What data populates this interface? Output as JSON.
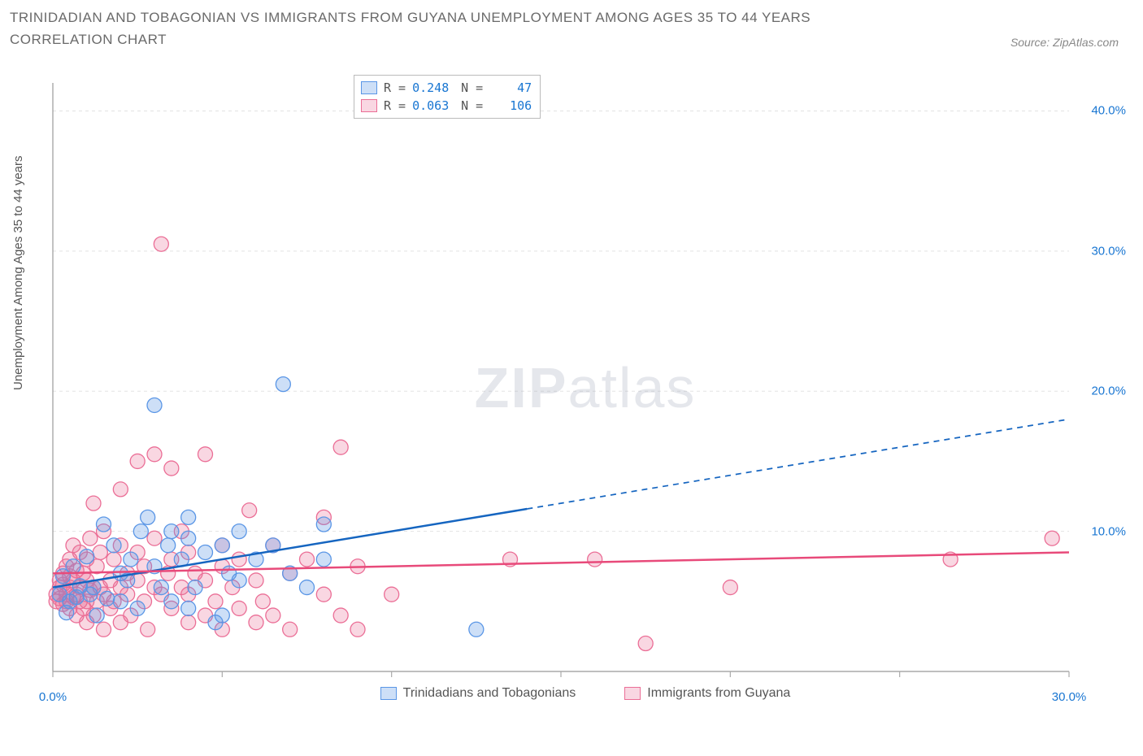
{
  "title": "TRINIDADIAN AND TOBAGONIAN VS IMMIGRANTS FROM GUYANA UNEMPLOYMENT AMONG AGES 35 TO 44 YEARS CORRELATION CHART",
  "source": "Source: ZipAtlas.com",
  "ylabel": "Unemployment Among Ages 35 to 44 years",
  "watermark_a": "ZIP",
  "watermark_b": "atlas",
  "chart": {
    "type": "scatter",
    "xlim": [
      0,
      30
    ],
    "ylim": [
      0,
      42
    ],
    "xticks": [
      0,
      5,
      10,
      15,
      20,
      25,
      30
    ],
    "xticklabels": [
      "0.0%",
      "",
      "",
      "",
      "",
      "",
      "30.0%"
    ],
    "yticks": [
      10,
      20,
      30,
      40
    ],
    "yticklabels": [
      "10.0%",
      "20.0%",
      "30.0%",
      "40.0%"
    ],
    "grid_color": "#e3e3e3",
    "axis_color": "#999999",
    "tick_color": "#aaaaaa",
    "background": "#ffffff",
    "marker_radius": 9,
    "marker_stroke_width": 1.3,
    "line_width": 2.5,
    "series": [
      {
        "name": "Trinidadians and Tobagonians",
        "color_fill": "rgba(90,150,230,0.30)",
        "color_stroke": "#5a96e6",
        "line_color": "#1565c0",
        "R": "0.248",
        "N": "47",
        "trend": {
          "x1": 0,
          "y1": 6.0,
          "x2": 30,
          "y2": 18.0,
          "solid_until_x": 14
        },
        "points": [
          [
            0.2,
            5.5
          ],
          [
            0.3,
            6.8
          ],
          [
            0.4,
            4.2
          ],
          [
            0.5,
            5.0
          ],
          [
            0.6,
            7.5
          ],
          [
            0.7,
            5.3
          ],
          [
            0.8,
            6.1
          ],
          [
            1.0,
            8.2
          ],
          [
            1.1,
            5.5
          ],
          [
            1.2,
            6.0
          ],
          [
            1.3,
            4.0
          ],
          [
            1.5,
            10.5
          ],
          [
            1.6,
            5.2
          ],
          [
            1.8,
            9.0
          ],
          [
            2.0,
            5.0
          ],
          [
            2.0,
            7.0
          ],
          [
            2.2,
            6.5
          ],
          [
            2.3,
            8.0
          ],
          [
            2.5,
            4.5
          ],
          [
            2.6,
            10.0
          ],
          [
            2.8,
            11.0
          ],
          [
            3.0,
            7.5
          ],
          [
            3.0,
            19.0
          ],
          [
            3.2,
            6.0
          ],
          [
            3.4,
            9.0
          ],
          [
            3.5,
            5.0
          ],
          [
            3.5,
            10.0
          ],
          [
            3.8,
            8.0
          ],
          [
            4.0,
            4.5
          ],
          [
            4.0,
            9.5
          ],
          [
            4.0,
            11.0
          ],
          [
            4.2,
            6.0
          ],
          [
            4.5,
            8.5
          ],
          [
            4.8,
            3.5
          ],
          [
            5.0,
            4.0
          ],
          [
            5.0,
            9.0
          ],
          [
            5.2,
            7.0
          ],
          [
            5.5,
            6.5
          ],
          [
            5.5,
            10.0
          ],
          [
            6.0,
            8.0
          ],
          [
            6.5,
            9.0
          ],
          [
            6.8,
            20.5
          ],
          [
            7.0,
            7.0
          ],
          [
            7.5,
            6.0
          ],
          [
            8.0,
            10.5
          ],
          [
            8.0,
            8.0
          ],
          [
            12.5,
            3.0
          ]
        ]
      },
      {
        "name": "Immigrants from Guyana",
        "color_fill": "rgba(235,110,150,0.28)",
        "color_stroke": "#eb6e96",
        "line_color": "#e84a7a",
        "R": "0.063",
        "N": "106",
        "trend": {
          "x1": 0,
          "y1": 7.0,
          "x2": 30,
          "y2": 8.5,
          "solid_until_x": 30
        },
        "points": [
          [
            0.1,
            5.0
          ],
          [
            0.1,
            5.5
          ],
          [
            0.2,
            6.0
          ],
          [
            0.2,
            6.5
          ],
          [
            0.2,
            5.2
          ],
          [
            0.3,
            4.8
          ],
          [
            0.3,
            6.2
          ],
          [
            0.3,
            7.0
          ],
          [
            0.4,
            5.0
          ],
          [
            0.4,
            5.5
          ],
          [
            0.4,
            7.5
          ],
          [
            0.5,
            4.5
          ],
          [
            0.5,
            6.0
          ],
          [
            0.5,
            6.8
          ],
          [
            0.5,
            8.0
          ],
          [
            0.6,
            5.3
          ],
          [
            0.6,
            6.5
          ],
          [
            0.6,
            9.0
          ],
          [
            0.7,
            4.0
          ],
          [
            0.7,
            5.5
          ],
          [
            0.7,
            7.2
          ],
          [
            0.8,
            5.0
          ],
          [
            0.8,
            6.0
          ],
          [
            0.8,
            8.5
          ],
          [
            0.9,
            4.5
          ],
          [
            0.9,
            7.0
          ],
          [
            1.0,
            3.5
          ],
          [
            1.0,
            5.0
          ],
          [
            1.0,
            6.5
          ],
          [
            1.0,
            8.0
          ],
          [
            1.1,
            5.8
          ],
          [
            1.1,
            9.5
          ],
          [
            1.2,
            4.0
          ],
          [
            1.2,
            6.0
          ],
          [
            1.2,
            12.0
          ],
          [
            1.3,
            5.0
          ],
          [
            1.3,
            7.5
          ],
          [
            1.4,
            6.0
          ],
          [
            1.4,
            8.5
          ],
          [
            1.5,
            3.0
          ],
          [
            1.5,
            5.5
          ],
          [
            1.5,
            10.0
          ],
          [
            1.7,
            4.5
          ],
          [
            1.7,
            6.5
          ],
          [
            1.8,
            5.0
          ],
          [
            1.8,
            8.0
          ],
          [
            2.0,
            3.5
          ],
          [
            2.0,
            6.0
          ],
          [
            2.0,
            9.0
          ],
          [
            2.0,
            13.0
          ],
          [
            2.2,
            5.5
          ],
          [
            2.2,
            7.0
          ],
          [
            2.3,
            4.0
          ],
          [
            2.5,
            6.5
          ],
          [
            2.5,
            8.5
          ],
          [
            2.5,
            15.0
          ],
          [
            2.7,
            5.0
          ],
          [
            2.7,
            7.5
          ],
          [
            2.8,
            3.0
          ],
          [
            3.0,
            6.0
          ],
          [
            3.0,
            9.5
          ],
          [
            3.0,
            15.5
          ],
          [
            3.2,
            5.5
          ],
          [
            3.2,
            30.5
          ],
          [
            3.4,
            7.0
          ],
          [
            3.5,
            4.5
          ],
          [
            3.5,
            8.0
          ],
          [
            3.5,
            14.5
          ],
          [
            3.8,
            6.0
          ],
          [
            3.8,
            10.0
          ],
          [
            4.0,
            3.5
          ],
          [
            4.0,
            5.5
          ],
          [
            4.0,
            8.5
          ],
          [
            4.2,
            7.0
          ],
          [
            4.5,
            4.0
          ],
          [
            4.5,
            6.5
          ],
          [
            4.5,
            15.5
          ],
          [
            4.8,
            5.0
          ],
          [
            5.0,
            3.0
          ],
          [
            5.0,
            7.5
          ],
          [
            5.0,
            9.0
          ],
          [
            5.3,
            6.0
          ],
          [
            5.5,
            4.5
          ],
          [
            5.5,
            8.0
          ],
          [
            5.8,
            11.5
          ],
          [
            6.0,
            3.5
          ],
          [
            6.0,
            6.5
          ],
          [
            6.2,
            5.0
          ],
          [
            6.5,
            4.0
          ],
          [
            6.5,
            9.0
          ],
          [
            7.0,
            3.0
          ],
          [
            7.0,
            7.0
          ],
          [
            7.5,
            8.0
          ],
          [
            8.0,
            5.5
          ],
          [
            8.0,
            11.0
          ],
          [
            8.5,
            4.0
          ],
          [
            8.5,
            16.0
          ],
          [
            9.0,
            3.0
          ],
          [
            9.0,
            7.5
          ],
          [
            10.0,
            5.5
          ],
          [
            13.5,
            8.0
          ],
          [
            16.0,
            8.0
          ],
          [
            17.5,
            2.0
          ],
          [
            20.0,
            6.0
          ],
          [
            26.5,
            8.0
          ],
          [
            29.5,
            9.5
          ]
        ]
      }
    ]
  },
  "legend_top_labels": {
    "R": "R =",
    "N": "N ="
  },
  "legend_bottom": [
    "Trinidadians and Tobagonians",
    "Immigrants from Guyana"
  ]
}
